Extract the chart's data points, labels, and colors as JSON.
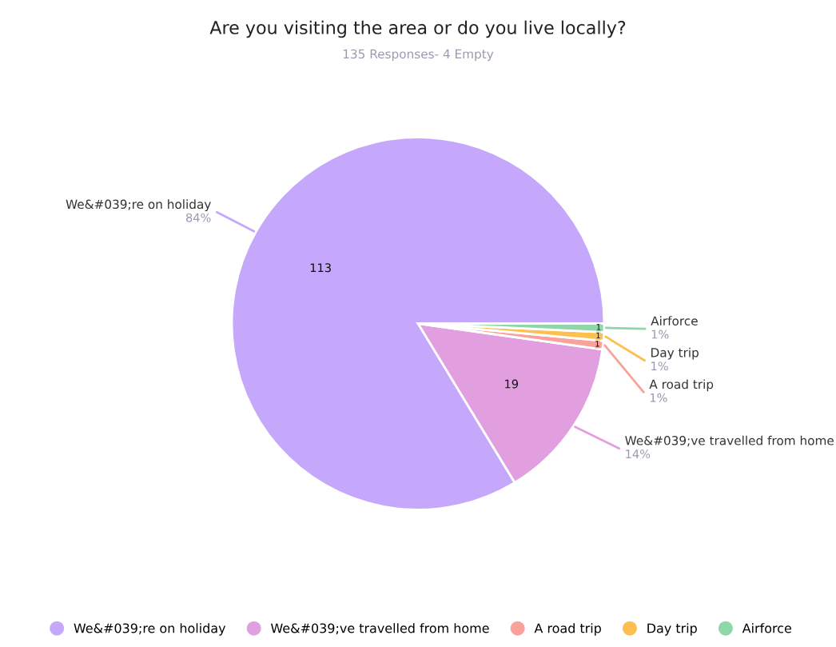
{
  "chart_data": {
    "type": "pie",
    "title": "Are you visiting the area or do you live locally?",
    "subtitle": "135 Responses- 4 Empty",
    "categories": [
      "We&#039;re on holiday",
      "We&#039;ve travelled from home",
      "A road trip",
      "Day trip",
      "Airforce"
    ],
    "values": [
      113,
      19,
      1,
      1,
      1
    ],
    "colors": [
      "#c5a8fb",
      "#e19fe0",
      "#f9a19a",
      "#fdbf4f",
      "#8fd6a8"
    ],
    "value_labels": [
      "113",
      "19",
      "1",
      "1",
      "1"
    ],
    "annotations": [
      "84%",
      "14%",
      "1%",
      "1%",
      "1%"
    ],
    "legend": "bottom"
  }
}
